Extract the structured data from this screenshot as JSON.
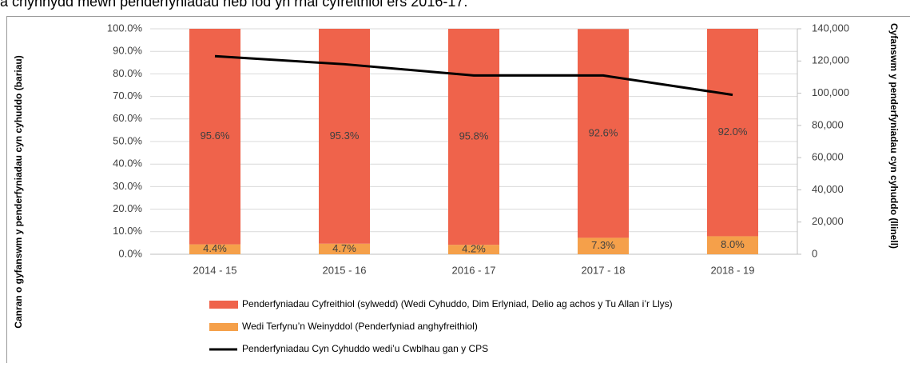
{
  "caption": "a chynnydd mewn penderfyniadau heb fod yn rhai cyfreithiol ers 2016-17.",
  "chart_data": {
    "type": "bar",
    "stacked": true,
    "y_label": "Canran o gyfanswm y penderfyniadau cyn cyhuddo (bariau)",
    "y2_label": "Cyfanswm y penderfyniadau cyn cyhuddo (llinell)",
    "categories": [
      "2014 - 15",
      "2015 - 16",
      "2016 - 17",
      "2017 - 18",
      "2018 - 19"
    ],
    "series": [
      {
        "name": "Wedi Terfynu’n Weinyddol (Penderfyniad anghyfreithiol)",
        "color": "#f5a04a",
        "type": "bar",
        "values": [
          4.4,
          4.7,
          4.2,
          7.3,
          8.0
        ],
        "value_labels": [
          "4.4%",
          "4.7%",
          "4.2%",
          "7.3%",
          "8.0%"
        ]
      },
      {
        "name": "Penderfyniadau Cyfreithiol (sylwedd) (Wedi Cyhuddo, Dim Erlyniad, Delio ag achos y Tu Allan i’r Llys)",
        "color": "#ef634b",
        "type": "bar",
        "values": [
          95.6,
          95.3,
          95.8,
          92.6,
          92.0
        ],
        "value_labels": [
          "95.6%",
          "95.3%",
          "95.8%",
          "92.6%",
          "92.0%"
        ]
      },
      {
        "name": "Penderfyniadau Cyn Cyhuddo wedi’u Cwblhau gan y CPS",
        "color": "#000000",
        "type": "line",
        "axis": "y2",
        "values": [
          123000,
          118000,
          111000,
          111000,
          99000
        ]
      }
    ],
    "legend_order": [
      1,
      0,
      2
    ],
    "ylim": [
      0,
      100
    ],
    "yticks": [
      {
        "value": 0,
        "label": "0.0%"
      },
      {
        "value": 10,
        "label": "10.0%"
      },
      {
        "value": 20,
        "label": "20.0%"
      },
      {
        "value": 30,
        "label": "30.0%"
      },
      {
        "value": 40,
        "label": "40.0%"
      },
      {
        "value": 50,
        "label": "50.0%"
      },
      {
        "value": 60,
        "label": "60.0%"
      },
      {
        "value": 70,
        "label": "70.0%"
      },
      {
        "value": 80,
        "label": "80.0%"
      },
      {
        "value": 90,
        "label": "90.0%"
      },
      {
        "value": 100,
        "label": "100.0%"
      }
    ],
    "y2lim": [
      0,
      140000
    ],
    "y2ticks": [
      0,
      {
        "value": 20000,
        "label": "20,000"
      },
      {
        "value": 40000,
        "label": "40,000"
      },
      {
        "value": 60000,
        "label": "60,000"
      },
      {
        "value": 80000,
        "label": "80,000"
      },
      {
        "value": 100000,
        "label": "100,000"
      },
      {
        "value": 120000,
        "label": "120,000"
      },
      {
        "value": 140000,
        "label": "140,000"
      }
    ],
    "grid": true
  }
}
